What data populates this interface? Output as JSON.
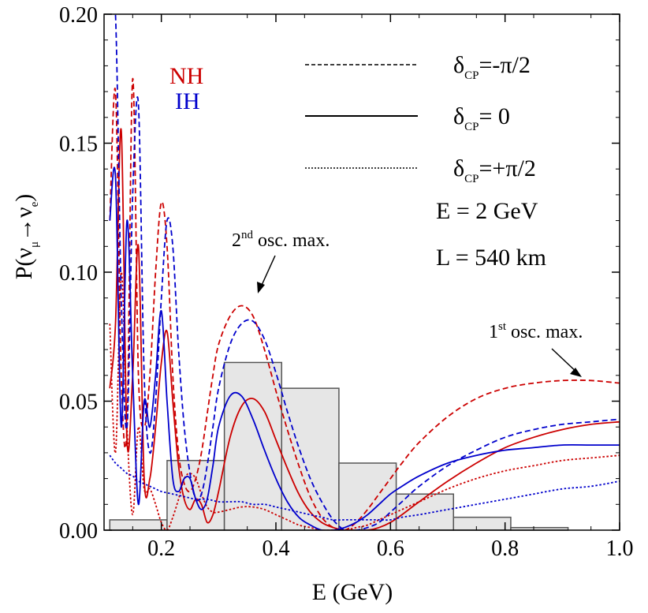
{
  "chart_data": {
    "type": "line",
    "xlabel": "E  (GeV)",
    "ylabel": {
      "base": "P(ν",
      "sub1": "μ",
      "arrow": "→ν",
      "sub2": "e",
      "end": ")"
    },
    "xlim": [
      0.1,
      1.0
    ],
    "ylim": [
      0.0,
      0.2
    ],
    "x_ticks": [
      "0.2",
      "0.4",
      "0.6",
      "0.8",
      "1.0"
    ],
    "y_ticks": [
      "0.00",
      "0.05",
      "0.10",
      "0.15",
      "0.20"
    ],
    "grid": false,
    "colors": {
      "NH": "#cc0000",
      "IH": "#0000cc",
      "hist_fill": "#e6e6e6",
      "hist_stroke": "#555555"
    },
    "hierarchy_labels": {
      "NH": "NH",
      "IH": "IH"
    },
    "legend": [
      {
        "style": "dashed",
        "prefix": "δ",
        "sub": "CP",
        "suffix": "=-π/2"
      },
      {
        "style": "solid",
        "prefix": "δ",
        "sub": "CP",
        "suffix": "= 0"
      },
      {
        "style": "dotted",
        "prefix": "δ",
        "sub": "CP",
        "suffix": "=+π/2"
      }
    ],
    "info": [
      "E = 2 GeV",
      "L = 540 km"
    ],
    "annotations": [
      {
        "sup": "nd",
        "pre": "2",
        "post": " osc. max."
      },
      {
        "sup": "st",
        "pre": "1",
        "post": " osc. max."
      }
    ],
    "histogram": {
      "edges": [
        0.11,
        0.21,
        0.31,
        0.41,
        0.51,
        0.61,
        0.71,
        0.81,
        0.91
      ],
      "values": [
        0.004,
        0.027,
        0.065,
        0.055,
        0.026,
        0.014,
        0.005,
        0.001
      ]
    },
    "series": [
      {
        "hierarchy": "NH",
        "delta": "-π/2",
        "x": [
          0.11,
          0.12,
          0.13,
          0.14,
          0.15,
          0.16,
          0.17,
          0.18,
          0.19,
          0.2,
          0.21,
          0.22,
          0.23,
          0.24,
          0.25,
          0.26,
          0.27,
          0.28,
          0.29,
          0.3,
          0.32,
          0.34,
          0.36,
          0.38,
          0.4,
          0.42,
          0.44,
          0.46,
          0.48,
          0.5,
          0.52,
          0.54,
          0.56,
          0.58,
          0.6,
          0.62,
          0.65,
          0.7,
          0.75,
          0.8,
          0.85,
          0.9,
          0.95,
          1.0
        ],
        "y": [
          0.12,
          0.17,
          0.06,
          0.04,
          0.175,
          0.06,
          0.04,
          0.06,
          0.1,
          0.127,
          0.11,
          0.06,
          0.03,
          0.018,
          0.015,
          0.02,
          0.03,
          0.045,
          0.06,
          0.072,
          0.083,
          0.087,
          0.083,
          0.07,
          0.054,
          0.039,
          0.025,
          0.013,
          0.005,
          0.001,
          0.0,
          0.003,
          0.008,
          0.014,
          0.02,
          0.026,
          0.034,
          0.044,
          0.051,
          0.055,
          0.057,
          0.058,
          0.058,
          0.057
        ]
      },
      {
        "hierarchy": "NH",
        "delta": "0",
        "x": [
          0.11,
          0.12,
          0.13,
          0.14,
          0.15,
          0.16,
          0.17,
          0.18,
          0.19,
          0.2,
          0.21,
          0.22,
          0.23,
          0.24,
          0.25,
          0.26,
          0.27,
          0.28,
          0.29,
          0.3,
          0.32,
          0.34,
          0.36,
          0.38,
          0.4,
          0.42,
          0.44,
          0.46,
          0.48,
          0.5,
          0.52,
          0.54,
          0.56,
          0.58,
          0.6,
          0.62,
          0.65,
          0.7,
          0.75,
          0.8,
          0.85,
          0.9,
          0.95,
          1.0
        ],
        "y": [
          0.055,
          0.08,
          0.155,
          0.035,
          0.06,
          0.11,
          0.02,
          0.02,
          0.04,
          0.065,
          0.077,
          0.05,
          0.025,
          0.012,
          0.008,
          0.012,
          0.01,
          0.003,
          0.006,
          0.015,
          0.036,
          0.048,
          0.051,
          0.046,
          0.035,
          0.024,
          0.014,
          0.007,
          0.003,
          0.001,
          0.0,
          0.0,
          0.0,
          0.001,
          0.003,
          0.006,
          0.011,
          0.019,
          0.026,
          0.032,
          0.036,
          0.039,
          0.041,
          0.042
        ]
      },
      {
        "hierarchy": "NH",
        "delta": "+π/2",
        "x": [
          0.11,
          0.12,
          0.13,
          0.14,
          0.15,
          0.16,
          0.17,
          0.18,
          0.19,
          0.2,
          0.21,
          0.22,
          0.23,
          0.24,
          0.25,
          0.26,
          0.27,
          0.28,
          0.29,
          0.3,
          0.32,
          0.34,
          0.36,
          0.38,
          0.4,
          0.42,
          0.44,
          0.46,
          0.48,
          0.5,
          0.52,
          0.54,
          0.56,
          0.58,
          0.6,
          0.62,
          0.65,
          0.7,
          0.75,
          0.8,
          0.85,
          0.9,
          0.95,
          1.0
        ],
        "y": [
          0.08,
          0.03,
          0.1,
          0.04,
          0.006,
          0.04,
          0.016,
          0.016,
          0.01,
          0.003,
          0.0,
          0.005,
          0.012,
          0.02,
          0.022,
          0.02,
          0.014,
          0.009,
          0.007,
          0.007,
          0.008,
          0.009,
          0.009,
          0.008,
          0.006,
          0.004,
          0.002,
          0.001,
          0.0,
          0.0,
          0.0,
          0.001,
          0.002,
          0.004,
          0.006,
          0.008,
          0.011,
          0.016,
          0.02,
          0.023,
          0.025,
          0.027,
          0.028,
          0.029
        ]
      },
      {
        "hierarchy": "IH",
        "delta": "-π/2",
        "x": [
          0.11,
          0.12,
          0.13,
          0.14,
          0.15,
          0.16,
          0.17,
          0.18,
          0.19,
          0.2,
          0.21,
          0.22,
          0.23,
          0.24,
          0.25,
          0.26,
          0.27,
          0.28,
          0.29,
          0.3,
          0.32,
          0.34,
          0.36,
          0.38,
          0.4,
          0.42,
          0.44,
          0.46,
          0.48,
          0.5,
          0.52,
          0.54,
          0.56,
          0.58,
          0.6,
          0.62,
          0.65,
          0.7,
          0.75,
          0.8,
          0.85,
          0.9,
          0.95,
          1.0
        ],
        "y": [
          0.2,
          0.2,
          0.09,
          0.04,
          0.13,
          0.165,
          0.06,
          0.03,
          0.05,
          0.09,
          0.12,
          0.11,
          0.07,
          0.04,
          0.022,
          0.012,
          0.014,
          0.025,
          0.04,
          0.055,
          0.072,
          0.08,
          0.081,
          0.074,
          0.061,
          0.046,
          0.032,
          0.02,
          0.011,
          0.004,
          0.0,
          0.0,
          0.001,
          0.003,
          0.007,
          0.011,
          0.017,
          0.025,
          0.031,
          0.036,
          0.039,
          0.041,
          0.042,
          0.043
        ]
      },
      {
        "hierarchy": "IH",
        "delta": "0",
        "x": [
          0.11,
          0.12,
          0.13,
          0.14,
          0.15,
          0.16,
          0.17,
          0.18,
          0.19,
          0.2,
          0.21,
          0.22,
          0.23,
          0.24,
          0.25,
          0.26,
          0.27,
          0.28,
          0.29,
          0.3,
          0.32,
          0.34,
          0.36,
          0.38,
          0.4,
          0.42,
          0.44,
          0.46,
          0.48,
          0.5,
          0.52,
          0.54,
          0.56,
          0.58,
          0.6,
          0.62,
          0.65,
          0.7,
          0.75,
          0.8,
          0.85,
          0.9,
          0.95,
          1.0
        ],
        "y": [
          0.12,
          0.137,
          0.04,
          0.12,
          0.06,
          0.01,
          0.05,
          0.04,
          0.06,
          0.085,
          0.05,
          0.02,
          0.015,
          0.02,
          0.02,
          0.012,
          0.008,
          0.012,
          0.025,
          0.04,
          0.052,
          0.052,
          0.043,
          0.031,
          0.02,
          0.011,
          0.005,
          0.002,
          0.0,
          0.0,
          0.001,
          0.003,
          0.006,
          0.01,
          0.014,
          0.017,
          0.021,
          0.026,
          0.029,
          0.031,
          0.032,
          0.033,
          0.033,
          0.033
        ]
      },
      {
        "hierarchy": "IH",
        "delta": "+π/2",
        "x": [
          0.11,
          0.12,
          0.13,
          0.14,
          0.15,
          0.16,
          0.17,
          0.18,
          0.19,
          0.2,
          0.22,
          0.24,
          0.26,
          0.28,
          0.3,
          0.32,
          0.34,
          0.36,
          0.38,
          0.4,
          0.42,
          0.44,
          0.46,
          0.48,
          0.5,
          0.52,
          0.54,
          0.56,
          0.58,
          0.6,
          0.62,
          0.65,
          0.7,
          0.75,
          0.8,
          0.85,
          0.9,
          0.95,
          1.0
        ],
        "y": [
          0.029,
          0.026,
          0.024,
          0.022,
          0.021,
          0.019,
          0.018,
          0.017,
          0.016,
          0.015,
          0.014,
          0.013,
          0.012,
          0.012,
          0.011,
          0.011,
          0.011,
          0.01,
          0.01,
          0.009,
          0.008,
          0.007,
          0.006,
          0.005,
          0.004,
          0.004,
          0.004,
          0.004,
          0.004,
          0.004,
          0.005,
          0.006,
          0.008,
          0.01,
          0.012,
          0.014,
          0.016,
          0.017,
          0.019
        ]
      }
    ]
  }
}
